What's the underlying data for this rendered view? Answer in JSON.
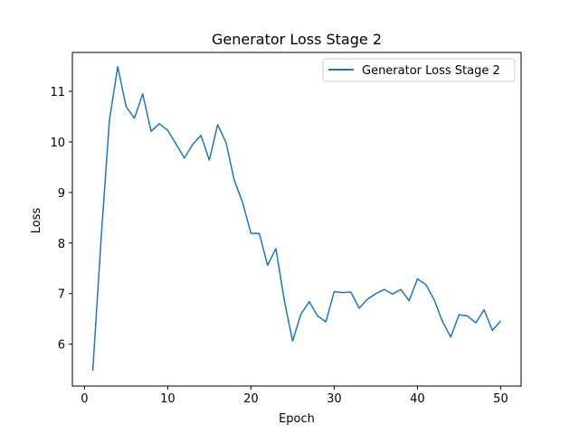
{
  "chart_data": {
    "type": "line",
    "title": "Generator Loss Stage 2",
    "xlabel": "Epoch",
    "ylabel": "Loss",
    "xlim": [
      -1.45,
      52.45
    ],
    "ylim": [
      5.17,
      11.77
    ],
    "xticks": [
      0,
      10,
      20,
      30,
      40,
      50
    ],
    "yticks": [
      6,
      7,
      8,
      9,
      10,
      11
    ],
    "grid": false,
    "legend_position": "top-right",
    "series": [
      {
        "name": "Generator Loss Stage 2",
        "color": "#1f77b4",
        "x": [
          1,
          2,
          3,
          4,
          5,
          6,
          7,
          8,
          9,
          10,
          11,
          12,
          13,
          14,
          15,
          16,
          17,
          18,
          19,
          20,
          21,
          22,
          23,
          24,
          25,
          26,
          27,
          28,
          29,
          30,
          31,
          32,
          33,
          34,
          35,
          36,
          37,
          38,
          39,
          40,
          41,
          42,
          43,
          44,
          45,
          46,
          47,
          48,
          49,
          50
        ],
        "y": [
          5.47,
          8.08,
          10.43,
          11.49,
          10.7,
          10.47,
          10.95,
          10.21,
          10.36,
          10.23,
          9.96,
          9.68,
          9.95,
          10.13,
          9.64,
          10.34,
          9.99,
          9.24,
          8.8,
          8.19,
          8.19,
          7.56,
          7.89,
          6.87,
          6.06,
          6.59,
          6.84,
          6.56,
          6.44,
          7.04,
          7.02,
          7.03,
          6.71,
          6.89,
          7.0,
          7.08,
          6.99,
          7.08,
          6.86,
          7.29,
          7.18,
          6.88,
          6.45,
          6.14,
          6.58,
          6.56,
          6.42,
          6.68,
          6.27,
          6.46
        ]
      }
    ]
  }
}
